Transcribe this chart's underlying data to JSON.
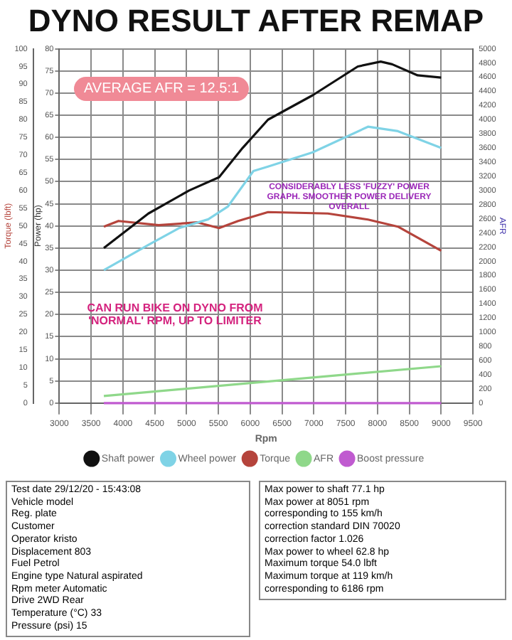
{
  "chart_data": {
    "type": "line",
    "title": "DYNO RESULT AFTER REMAP",
    "xlabel": "Rpm",
    "ylabel": "Power (hp)",
    "y2label": "Torque (lbft)",
    "y3label": "AFR",
    "xlim": [
      3000,
      9500
    ],
    "xticks": [
      3000,
      3500,
      4000,
      4500,
      5000,
      5500,
      6000,
      6500,
      7000,
      7500,
      8000,
      8500,
      9000,
      9500
    ],
    "ylim": [
      0,
      80
    ],
    "yticks": [
      0,
      5,
      10,
      15,
      20,
      25,
      30,
      35,
      40,
      45,
      50,
      55,
      60,
      65,
      70,
      75,
      80
    ],
    "y2lim": [
      0,
      100
    ],
    "y2ticks": [
      0,
      5,
      10,
      15,
      20,
      25,
      30,
      35,
      40,
      45,
      50,
      55,
      60,
      65,
      70,
      75,
      80,
      85,
      90,
      95,
      100
    ],
    "y3lim": [
      0,
      5000
    ],
    "y3ticks": [
      0,
      200,
      400,
      600,
      800,
      1000,
      1200,
      1400,
      1600,
      1800,
      2000,
      2200,
      2400,
      2600,
      2800,
      3000,
      3200,
      3400,
      3600,
      3800,
      4000,
      4200,
      4400,
      4600,
      4800,
      5000
    ],
    "grid": true,
    "legend": "bottom",
    "marker": "none",
    "line_style": "solid",
    "series": [
      {
        "name": "Shaft power",
        "color": "#111111",
        "x": [
          3700,
          4400,
          5040,
          5510,
          5880,
          6280,
          6980,
          7690,
          8050,
          8230,
          8630,
          9000
        ],
        "values": [
          35,
          42.8,
          48,
          51,
          57.6,
          64,
          69.5,
          76,
          77.1,
          76.5,
          74,
          73.5
        ]
      },
      {
        "name": "Wheel power",
        "color": "#7fd3e6",
        "x": [
          3700,
          4400,
          4880,
          5340,
          5650,
          6050,
          6280,
          6980,
          7850,
          8320,
          9000
        ],
        "values": [
          30,
          35.7,
          39.5,
          41.5,
          44.4,
          52.4,
          53.4,
          56.6,
          62.4,
          61.4,
          57.6
        ]
      },
      {
        "name": "Torque",
        "color": "#b5443c",
        "axis": "y2",
        "x": [
          3700,
          3930,
          4560,
          5170,
          5510,
          5810,
          6280,
          7220,
          7850,
          8320,
          9000
        ],
        "values": [
          49.8,
          51.4,
          50.2,
          51,
          49.4,
          51.4,
          53.9,
          53.5,
          51.8,
          49.8,
          43
        ]
      },
      {
        "name": "AFR",
        "color": "#8fd88a",
        "axis": "y3",
        "x": [
          3700,
          9000
        ],
        "values": [
          100,
          520
        ]
      },
      {
        "name": "Boost pressure",
        "color": "#c05bd0",
        "axis": "y3",
        "x": [
          3700,
          9000
        ],
        "values": [
          0,
          0
        ]
      }
    ],
    "annotations": [
      "AVERAGE AFR = 12.5:1",
      "CONSIDERABLY LESS 'FUZZY' POWER GRAPH. SMOOTHER POWER DELIVERY OVERALL",
      "CAN RUN BIKE ON DYNO FROM 'NORMAL' RPM, UP TO LIMITER",
      "Test date  29/12/20 - 15:43:08",
      "Vehicle model",
      "Reg. plate",
      "Customer",
      "Operator  kristo",
      "Displacement  803",
      "Fuel  Petrol",
      "Engine type  Natural aspirated",
      "Rpm meter  Automatic",
      "Drive  2WD Rear",
      "Temperature (°C)  33",
      "Pressure (psi)  15",
      "Max power to shaft  77.1 hp",
      "Max power at  8051 rpm",
      "corresponding to  155 km/h",
      "correction standard  DIN 70020",
      "correction factor  1.026",
      "Max power to wheel  62.8 hp",
      "Maximum torque  54.0 lbft",
      "Maximum torque at  119 km/h",
      "corresponding to  6186 rpm"
    ]
  }
}
